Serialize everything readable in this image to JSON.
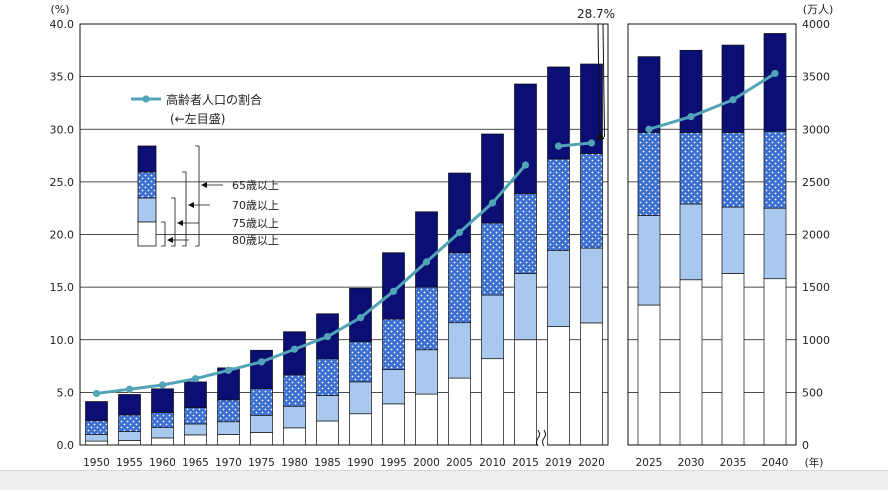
{
  "chart_data": {
    "type": "bar",
    "stacked": true,
    "y_left_unit": "(%)",
    "y_right_unit": "(万人)",
    "x_unit": "(年)",
    "y_left_ticks": [
      "0.0",
      "5.0",
      "10.0",
      "15.0",
      "20.0",
      "25.0",
      "30.0",
      "35.0",
      "40.0"
    ],
    "y_right_ticks": [
      "0",
      "500",
      "1000",
      "1500",
      "2000",
      "2500",
      "3000",
      "3500",
      "4000"
    ],
    "ylim_left": [
      0,
      40
    ],
    "ylim_right": [
      0,
      4000
    ],
    "grid": true,
    "legend": {
      "placement": "top-left",
      "line_label": "高齢者人口の割合",
      "line_sublabel": "(←左目盛)",
      "segment_labels": [
        "65歳以上",
        "70歳以上",
        "75歳以上",
        "80歳以上"
      ]
    },
    "annotation": "28.7%",
    "categories": [
      "1950",
      "1955",
      "1960",
      "1965",
      "1970",
      "1975",
      "1980",
      "1985",
      "1990",
      "1995",
      "2000",
      "2005",
      "2010",
      "2015",
      "2019",
      "2020",
      "2025",
      "2030",
      "2035",
      "2040"
    ],
    "series": [
      {
        "name": "80歳以上",
        "color": "#ffffff",
        "values": [
          37,
          44,
          67,
          96,
          100,
          119,
          163,
          228,
          297,
          391,
          484,
          636,
          820,
          1000,
          1125,
          1160,
          1330,
          1570,
          1630,
          1580
        ]
      },
      {
        "name": "75歳以上",
        "color": "#a9c8ee",
        "values": [
          63,
          83,
          98,
          104,
          121,
          163,
          205,
          242,
          303,
          326,
          421,
          526,
          604,
          630,
          722,
          711,
          850,
          720,
          630,
          670
        ]
      },
      {
        "name": "70歳以上",
        "color": "#3c6fd0",
        "values": [
          131,
          159,
          144,
          155,
          208,
          254,
          298,
          350,
          381,
          480,
          595,
          664,
          685,
          760,
          870,
          899,
          790,
          680,
          710,
          730
        ]
      },
      {
        "name": "65歳以上",
        "color": "#0b0e72",
        "values": [
          182,
          194,
          225,
          245,
          304,
          364,
          410,
          427,
          508,
          630,
          716,
          758,
          846,
          1040,
          875,
          850,
          720,
          780,
          830,
          930
        ]
      }
    ],
    "ratio_line": {
      "name": "高齢者人口の割合",
      "color": "#52a3b8",
      "historical": [
        4.9,
        5.3,
        5.7,
        6.3,
        7.1,
        7.9,
        9.1,
        10.3,
        12.1,
        14.6,
        17.4,
        20.2,
        23.0,
        26.6
      ],
      "recent": [
        28.4,
        28.7
      ],
      "projected": [
        30.0,
        31.2,
        32.8,
        35.3
      ]
    }
  }
}
